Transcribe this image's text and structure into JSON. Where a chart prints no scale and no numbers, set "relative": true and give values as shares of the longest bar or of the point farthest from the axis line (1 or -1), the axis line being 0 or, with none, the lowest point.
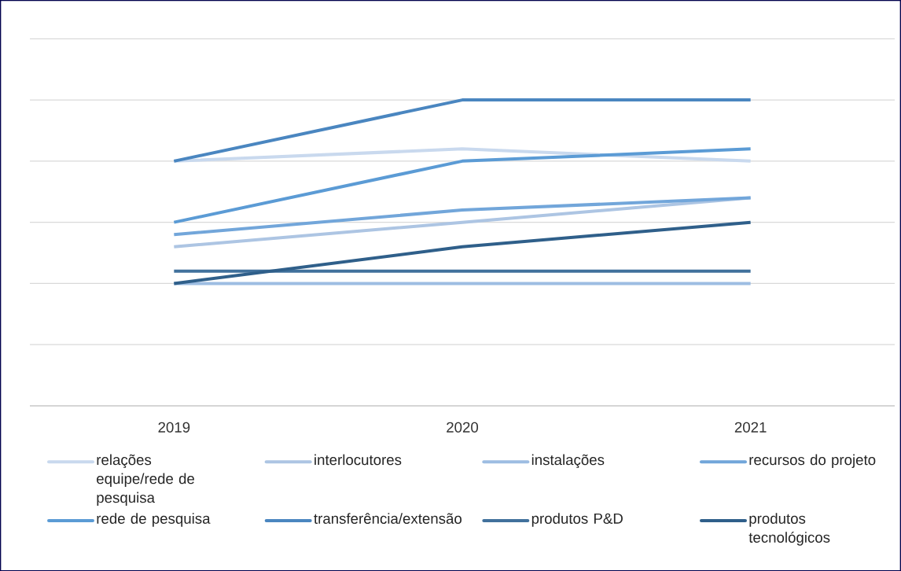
{
  "chart_data": {
    "type": "line",
    "relative": true,
    "grid": "y",
    "legend": "bottom",
    "categories": [
      "2019",
      "2020",
      "2021"
    ],
    "series": [
      {
        "name": "relações equipe/rede de pesquisa",
        "color": "#c9d9ee",
        "values": [
          0.8,
          0.84,
          0.8
        ]
      },
      {
        "name": "interlocutores",
        "color": "#adc5e3",
        "values": [
          0.52,
          0.6,
          0.68
        ]
      },
      {
        "name": "instalações",
        "color": "#9dbde2",
        "values": [
          0.4,
          0.4,
          0.4
        ]
      },
      {
        "name": "recursos do projeto",
        "color": "#72a6da",
        "values": [
          0.56,
          0.64,
          0.68
        ]
      },
      {
        "name": "rede de pesquisa",
        "color": "#5b9bd5",
        "values": [
          0.6,
          0.8,
          0.84
        ]
      },
      {
        "name": "transferência/extensão",
        "color": "#4a86c0",
        "values": [
          0.8,
          1,
          1
        ]
      },
      {
        "name": "produtos P&D",
        "color": "#41719c",
        "values": [
          0.44,
          0.44,
          0.44
        ]
      },
      {
        "name": "produtos tecnológicos",
        "color": "#2f5f8a",
        "values": [
          0.4,
          0.52,
          0.6
        ]
      }
    ]
  }
}
